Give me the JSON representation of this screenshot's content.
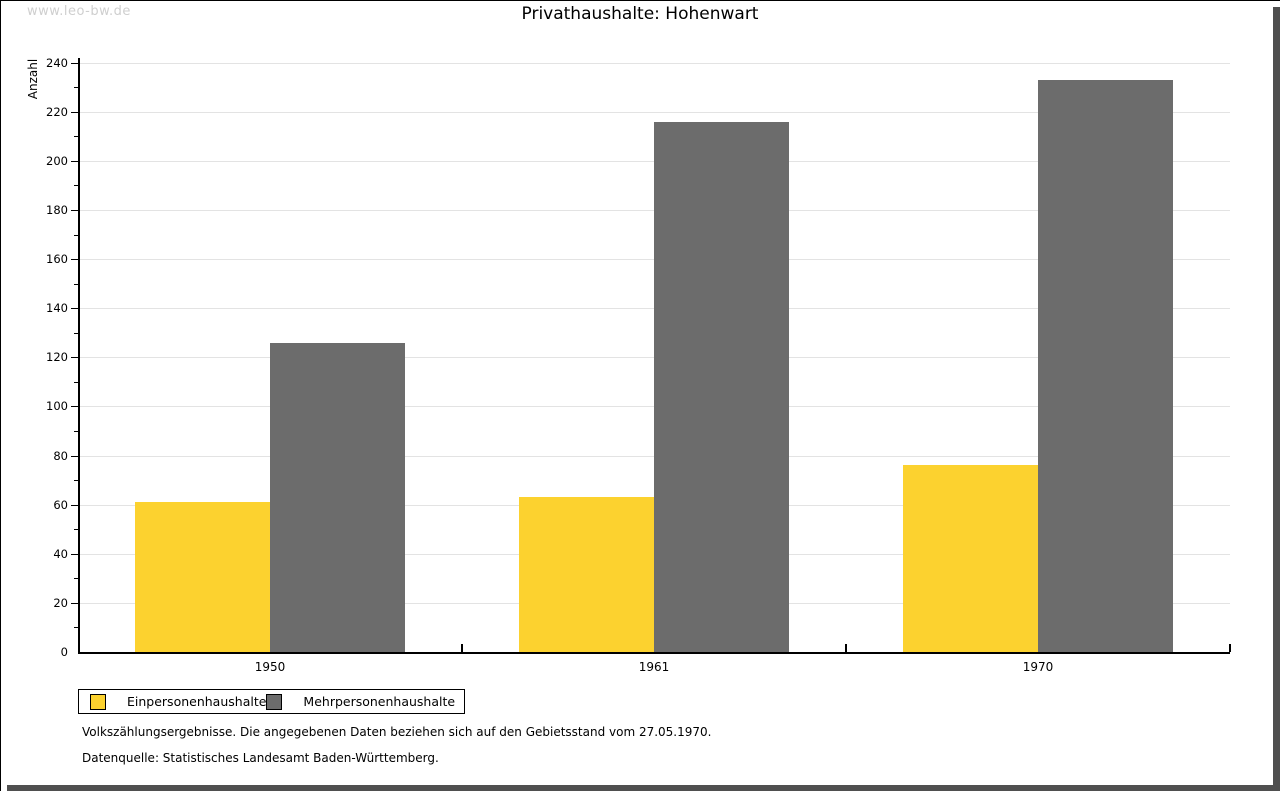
{
  "watermark": "www.leo-bw.de",
  "title": "Privathaushalte: Hohenwart",
  "footer": {
    "line1": "Volkszählungsergebnisse. Die angegebenen Daten beziehen sich auf den Gebietsstand vom 27.05.1970.",
    "line2": "Datenquelle: Statistisches Landesamt Baden-Württemberg."
  },
  "colors": {
    "bar_yellow": "#fcd22f",
    "bar_gray": "#6c6c6c",
    "gridline": "#e3e3e3",
    "watermark": "#cfcfcf",
    "axis": "#000000"
  },
  "chart_data": {
    "type": "bar",
    "title": "Privathaushalte: Hohenwart",
    "xlabel": "",
    "ylabel": "Anzahl",
    "categories": [
      "1950",
      "1961",
      "1970"
    ],
    "series": [
      {
        "name": "Einpersonenhaushalte",
        "color": "#fcd22f",
        "values": [
          61,
          63,
          76
        ]
      },
      {
        "name": "Mehrpersonenhaushalte",
        "color": "#6c6c6c",
        "values": [
          126,
          216,
          233
        ]
      }
    ],
    "ylim": [
      0,
      240
    ],
    "ytick_step": 20,
    "minor_tick_step": 10,
    "grid": true,
    "legend_position": "bottom-left"
  }
}
